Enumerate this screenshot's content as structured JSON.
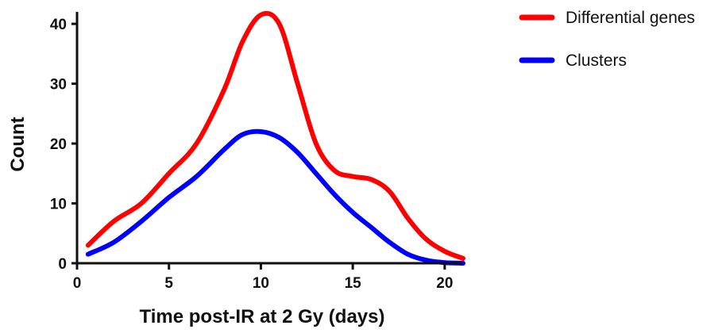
{
  "chart_data": {
    "type": "line",
    "xlabel": "Time post-IR at 2 Gy (days)",
    "ylabel": "Count",
    "xlim": [
      0,
      21
    ],
    "ylim": [
      0,
      42
    ],
    "x_ticks": [
      0,
      5,
      10,
      15,
      20
    ],
    "y_ticks": [
      0,
      10,
      20,
      30,
      40
    ],
    "grid": false,
    "legend_position": "top-right",
    "series": [
      {
        "name": "Differential genes",
        "color": "#ff0000",
        "x": [
          0.6,
          2,
          3.5,
          5,
          6.5,
          8,
          9,
          10,
          11,
          12,
          13,
          14,
          15,
          16,
          17,
          18,
          19,
          20,
          21
        ],
        "y": [
          3,
          7,
          10,
          15,
          20,
          29,
          37,
          41.5,
          40,
          30,
          20,
          15.5,
          14.5,
          14,
          12,
          7.5,
          4,
          2,
          0.8
        ]
      },
      {
        "name": "Clusters",
        "color": "#0000ff",
        "x": [
          0.6,
          2,
          3.5,
          5,
          6.5,
          8,
          9,
          10,
          11,
          12,
          13,
          14,
          15,
          16,
          17,
          18,
          19,
          20,
          21
        ],
        "y": [
          1.5,
          3.5,
          7,
          11,
          14.5,
          19,
          21.5,
          22,
          21,
          18.5,
          15,
          11.5,
          8.5,
          6,
          3.5,
          1.5,
          0.5,
          0.1,
          0
        ]
      }
    ]
  }
}
